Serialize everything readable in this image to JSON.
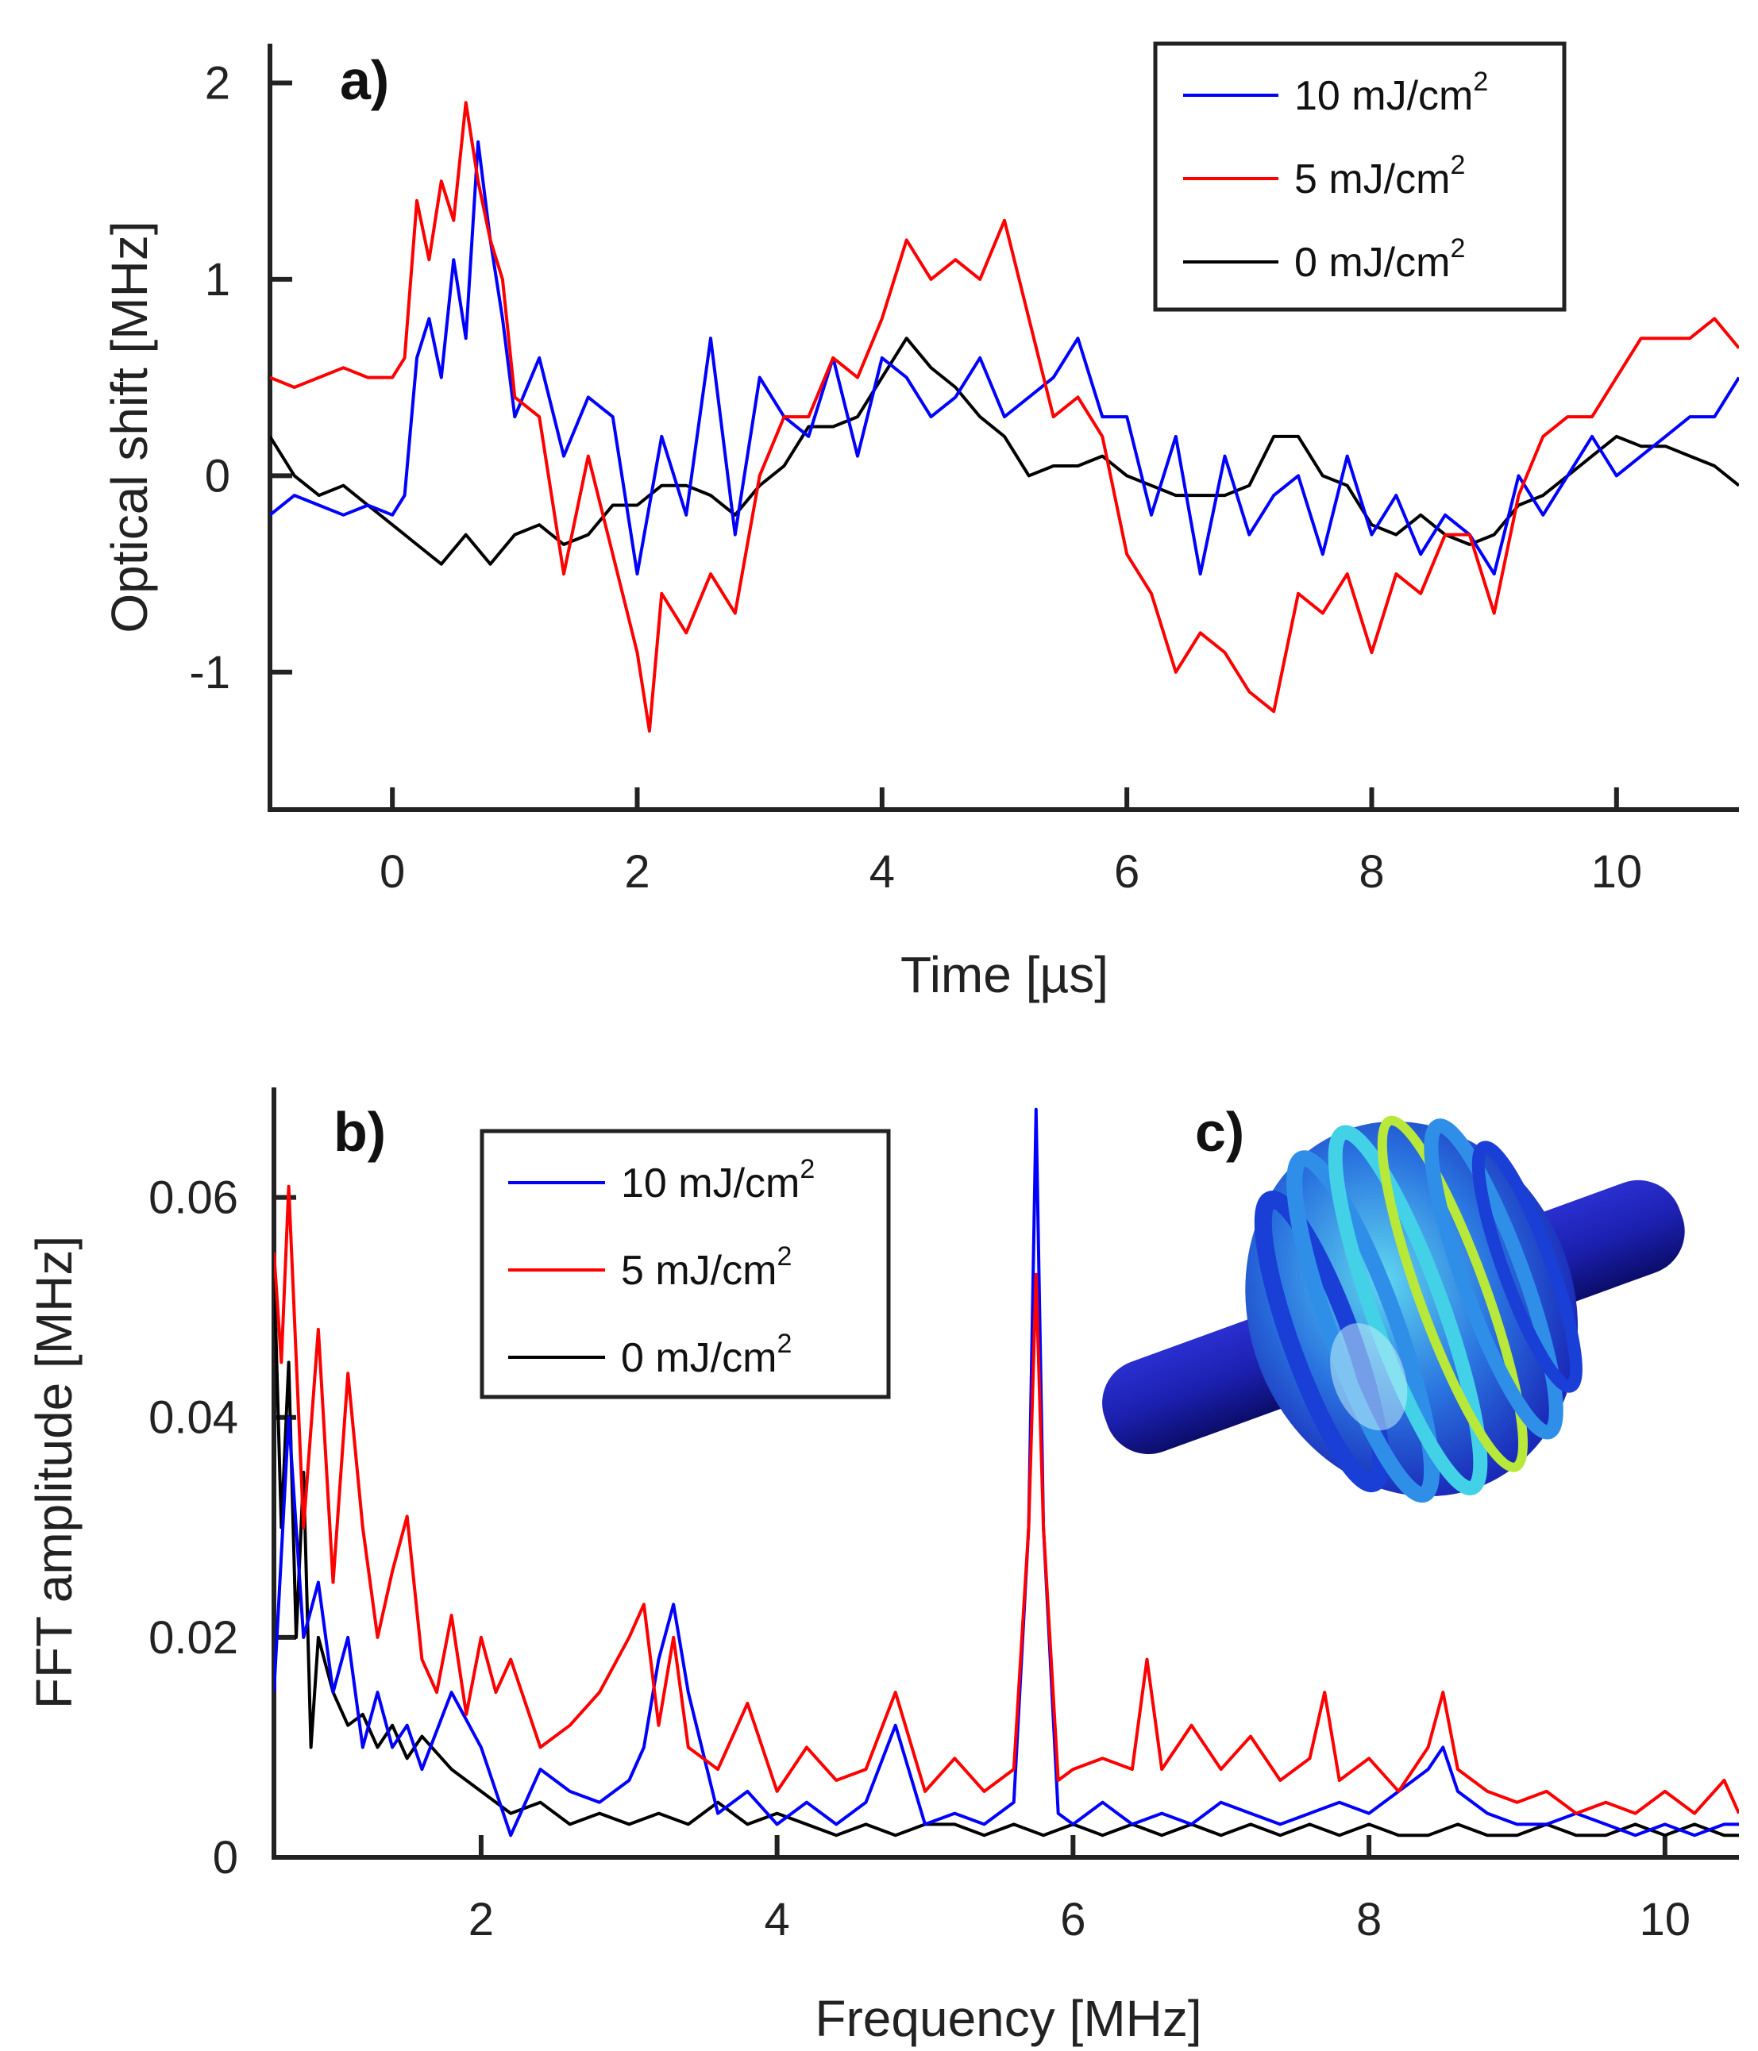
{
  "chart_data": [
    {
      "type": "line",
      "panel_label": "a)",
      "xlabel": "Time [µs]",
      "ylabel": "Optical shift [MHz]",
      "xlim": [
        -1,
        11
      ],
      "ylim": [
        -1.7,
        2.2
      ],
      "xticks": [
        0,
        2,
        4,
        6,
        8,
        10
      ],
      "yticks": [
        -1,
        0,
        1,
        2
      ],
      "xtick_labels": [
        "0",
        "2",
        "4",
        "6",
        "8",
        "10"
      ],
      "ytick_labels": [
        "-1",
        "0",
        "1",
        "2"
      ],
      "legend_position": "top-right",
      "series": [
        {
          "name": "10 mJ/cm",
          "sup": "2",
          "color": "#0000ff",
          "x": [
            -1.0,
            -0.8,
            -0.6,
            -0.4,
            -0.2,
            0.0,
            0.1,
            0.2,
            0.3,
            0.4,
            0.5,
            0.6,
            0.7,
            0.8,
            0.9,
            1.0,
            1.2,
            1.4,
            1.6,
            1.8,
            2.0,
            2.2,
            2.4,
            2.6,
            2.8,
            3.0,
            3.2,
            3.4,
            3.6,
            3.8,
            4.0,
            4.2,
            4.4,
            4.6,
            4.8,
            5.0,
            5.2,
            5.4,
            5.6,
            5.8,
            6.0,
            6.2,
            6.4,
            6.6,
            6.8,
            7.0,
            7.2,
            7.4,
            7.6,
            7.8,
            8.0,
            8.2,
            8.4,
            8.6,
            8.8,
            9.0,
            9.2,
            9.4,
            9.6,
            9.8,
            10.0,
            10.2,
            10.4,
            10.6,
            10.8,
            11.0
          ],
          "y": [
            -0.2,
            -0.1,
            -0.15,
            -0.2,
            -0.15,
            -0.2,
            -0.1,
            0.6,
            0.8,
            0.5,
            1.1,
            0.7,
            1.7,
            1.2,
            0.8,
            0.3,
            0.6,
            0.1,
            0.4,
            0.3,
            -0.5,
            0.2,
            -0.2,
            0.7,
            -0.3,
            0.5,
            0.3,
            0.2,
            0.6,
            0.1,
            0.6,
            0.5,
            0.3,
            0.4,
            0.6,
            0.3,
            0.4,
            0.5,
            0.7,
            0.3,
            0.3,
            -0.2,
            0.2,
            -0.5,
            0.1,
            -0.3,
            -0.1,
            0.0,
            -0.4,
            0.1,
            -0.3,
            -0.1,
            -0.4,
            -0.2,
            -0.3,
            -0.5,
            0.0,
            -0.2,
            0.0,
            0.2,
            0.0,
            0.1,
            0.2,
            0.3,
            0.3,
            0.5
          ]
        },
        {
          "name": "5 mJ/cm",
          "sup": "2",
          "color": "#ff0000",
          "x": [
            -1.0,
            -0.8,
            -0.6,
            -0.4,
            -0.2,
            0.0,
            0.1,
            0.2,
            0.3,
            0.4,
            0.5,
            0.6,
            0.7,
            0.8,
            0.9,
            1.0,
            1.2,
            1.4,
            1.6,
            1.8,
            2.0,
            2.1,
            2.2,
            2.4,
            2.6,
            2.8,
            3.0,
            3.2,
            3.4,
            3.6,
            3.8,
            4.0,
            4.2,
            4.4,
            4.6,
            4.8,
            5.0,
            5.2,
            5.4,
            5.6,
            5.8,
            6.0,
            6.2,
            6.4,
            6.6,
            6.8,
            7.0,
            7.2,
            7.4,
            7.6,
            7.8,
            8.0,
            8.2,
            8.4,
            8.6,
            8.8,
            9.0,
            9.2,
            9.4,
            9.6,
            9.8,
            10.0,
            10.2,
            10.4,
            10.6,
            10.8,
            11.0
          ],
          "y": [
            0.5,
            0.45,
            0.5,
            0.55,
            0.5,
            0.5,
            0.6,
            1.4,
            1.1,
            1.5,
            1.3,
            1.9,
            1.5,
            1.2,
            1.0,
            0.4,
            0.3,
            -0.5,
            0.1,
            -0.4,
            -0.9,
            -1.3,
            -0.6,
            -0.8,
            -0.5,
            -0.7,
            0.0,
            0.3,
            0.3,
            0.6,
            0.5,
            0.8,
            1.2,
            1.0,
            1.1,
            1.0,
            1.3,
            0.8,
            0.3,
            0.4,
            0.2,
            -0.4,
            -0.6,
            -1.0,
            -0.8,
            -0.9,
            -1.1,
            -1.2,
            -0.6,
            -0.7,
            -0.5,
            -0.9,
            -0.5,
            -0.6,
            -0.3,
            -0.3,
            -0.7,
            -0.1,
            0.2,
            0.3,
            0.3,
            0.5,
            0.7,
            0.7,
            0.7,
            0.8,
            0.65
          ]
        },
        {
          "name": "0 mJ/cm",
          "sup": "2",
          "color": "#000000",
          "x": [
            -1.0,
            -0.8,
            -0.6,
            -0.4,
            -0.2,
            0.0,
            0.2,
            0.4,
            0.6,
            0.8,
            1.0,
            1.2,
            1.4,
            1.6,
            1.8,
            2.0,
            2.2,
            2.4,
            2.6,
            2.8,
            3.0,
            3.2,
            3.4,
            3.6,
            3.8,
            4.0,
            4.2,
            4.4,
            4.6,
            4.8,
            5.0,
            5.2,
            5.4,
            5.6,
            5.8,
            6.0,
            6.2,
            6.4,
            6.6,
            6.8,
            7.0,
            7.2,
            7.4,
            7.6,
            7.8,
            8.0,
            8.2,
            8.4,
            8.6,
            8.8,
            9.0,
            9.2,
            9.4,
            9.6,
            9.8,
            10.0,
            10.2,
            10.4,
            10.6,
            10.8,
            11.0
          ],
          "y": [
            0.2,
            0.0,
            -0.1,
            -0.05,
            -0.15,
            -0.25,
            -0.35,
            -0.45,
            -0.3,
            -0.45,
            -0.3,
            -0.25,
            -0.35,
            -0.3,
            -0.15,
            -0.15,
            -0.05,
            -0.05,
            -0.1,
            -0.2,
            -0.05,
            0.05,
            0.25,
            0.25,
            0.3,
            0.5,
            0.7,
            0.55,
            0.45,
            0.3,
            0.2,
            0.0,
            0.05,
            0.05,
            0.1,
            0.0,
            -0.05,
            -0.1,
            -0.1,
            -0.1,
            -0.05,
            0.2,
            0.2,
            0.0,
            -0.05,
            -0.25,
            -0.3,
            -0.2,
            -0.3,
            -0.35,
            -0.3,
            -0.15,
            -0.1,
            0.0,
            0.1,
            0.2,
            0.15,
            0.15,
            0.1,
            0.05,
            -0.05
          ]
        }
      ]
    },
    {
      "type": "line",
      "panel_label": "b)",
      "xlabel": "Frequency [MHz]",
      "ylabel": "FFT amplitude [MHz]",
      "xlim": [
        0.6,
        10.5
      ],
      "ylim": [
        0,
        0.07
      ],
      "xticks": [
        2,
        4,
        6,
        8,
        10
      ],
      "yticks": [
        0,
        0.02,
        0.04,
        0.06
      ],
      "xtick_labels": [
        "2",
        "4",
        "6",
        "8",
        "10"
      ],
      "ytick_labels": [
        "0",
        "0.02",
        "0.04",
        "0.06"
      ],
      "legend_position": "top-center",
      "series": [
        {
          "name": "10 mJ/cm",
          "sup": "2",
          "color": "#0000ff",
          "x": [
            0.6,
            0.7,
            0.8,
            0.9,
            1.0,
            1.1,
            1.2,
            1.3,
            1.4,
            1.5,
            1.6,
            1.8,
            2.0,
            2.2,
            2.4,
            2.6,
            2.8,
            3.0,
            3.1,
            3.2,
            3.3,
            3.4,
            3.6,
            3.8,
            4.0,
            4.2,
            4.4,
            4.6,
            4.8,
            5.0,
            5.2,
            5.4,
            5.6,
            5.7,
            5.75,
            5.8,
            5.9,
            6.0,
            6.2,
            6.4,
            6.6,
            6.8,
            7.0,
            7.2,
            7.4,
            7.6,
            7.8,
            8.0,
            8.2,
            8.4,
            8.5,
            8.6,
            8.8,
            9.0,
            9.2,
            9.4,
            9.6,
            9.8,
            10.0,
            10.2,
            10.4,
            10.5
          ],
          "y": [
            0.015,
            0.04,
            0.02,
            0.025,
            0.015,
            0.02,
            0.01,
            0.015,
            0.01,
            0.012,
            0.008,
            0.015,
            0.01,
            0.002,
            0.008,
            0.006,
            0.005,
            0.007,
            0.01,
            0.018,
            0.023,
            0.015,
            0.004,
            0.006,
            0.003,
            0.005,
            0.003,
            0.005,
            0.012,
            0.003,
            0.004,
            0.003,
            0.005,
            0.03,
            0.068,
            0.03,
            0.004,
            0.003,
            0.005,
            0.003,
            0.004,
            0.003,
            0.005,
            0.004,
            0.003,
            0.004,
            0.005,
            0.004,
            0.006,
            0.008,
            0.01,
            0.006,
            0.004,
            0.003,
            0.003,
            0.004,
            0.003,
            0.002,
            0.003,
            0.002,
            0.003,
            0.003
          ]
        },
        {
          "name": "5 mJ/cm",
          "sup": "2",
          "color": "#ff0000",
          "x": [
            0.6,
            0.65,
            0.7,
            0.8,
            0.9,
            1.0,
            1.1,
            1.2,
            1.3,
            1.4,
            1.5,
            1.6,
            1.7,
            1.8,
            1.9,
            2.0,
            2.1,
            2.2,
            2.4,
            2.6,
            2.8,
            3.0,
            3.1,
            3.2,
            3.3,
            3.4,
            3.6,
            3.8,
            4.0,
            4.2,
            4.4,
            4.6,
            4.8,
            5.0,
            5.2,
            5.4,
            5.6,
            5.7,
            5.75,
            5.8,
            5.9,
            6.0,
            6.2,
            6.4,
            6.5,
            6.6,
            6.8,
            7.0,
            7.2,
            7.4,
            7.6,
            7.7,
            7.8,
            8.0,
            8.2,
            8.4,
            8.5,
            8.6,
            8.8,
            9.0,
            9.2,
            9.4,
            9.6,
            9.8,
            10.0,
            10.2,
            10.4,
            10.5
          ],
          "y": [
            0.055,
            0.045,
            0.061,
            0.03,
            0.048,
            0.025,
            0.044,
            0.03,
            0.02,
            0.026,
            0.031,
            0.018,
            0.015,
            0.022,
            0.013,
            0.02,
            0.015,
            0.018,
            0.01,
            0.012,
            0.015,
            0.02,
            0.023,
            0.012,
            0.02,
            0.01,
            0.008,
            0.014,
            0.006,
            0.01,
            0.007,
            0.008,
            0.015,
            0.006,
            0.009,
            0.006,
            0.008,
            0.03,
            0.053,
            0.03,
            0.007,
            0.008,
            0.009,
            0.008,
            0.018,
            0.008,
            0.012,
            0.008,
            0.011,
            0.007,
            0.009,
            0.015,
            0.007,
            0.009,
            0.006,
            0.01,
            0.015,
            0.008,
            0.006,
            0.005,
            0.006,
            0.004,
            0.005,
            0.004,
            0.006,
            0.004,
            0.007,
            0.004
          ]
        },
        {
          "name": "0 mJ/cm",
          "sup": "2",
          "color": "#000000",
          "x": [
            0.6,
            0.65,
            0.7,
            0.75,
            0.8,
            0.85,
            0.9,
            1.0,
            1.1,
            1.2,
            1.3,
            1.4,
            1.5,
            1.6,
            1.8,
            2.0,
            2.2,
            2.4,
            2.6,
            2.8,
            3.0,
            3.2,
            3.4,
            3.6,
            3.8,
            4.0,
            4.2,
            4.4,
            4.6,
            4.8,
            5.0,
            5.2,
            5.4,
            5.6,
            5.8,
            6.0,
            6.2,
            6.4,
            6.6,
            6.8,
            7.0,
            7.2,
            7.4,
            7.6,
            7.8,
            8.0,
            8.2,
            8.4,
            8.6,
            8.8,
            9.0,
            9.2,
            9.4,
            9.6,
            9.8,
            10.0,
            10.2,
            10.4,
            10.5
          ],
          "y": [
            0.054,
            0.03,
            0.045,
            0.02,
            0.035,
            0.01,
            0.02,
            0.015,
            0.012,
            0.013,
            0.01,
            0.012,
            0.009,
            0.011,
            0.008,
            0.006,
            0.004,
            0.005,
            0.003,
            0.004,
            0.003,
            0.004,
            0.003,
            0.005,
            0.003,
            0.004,
            0.003,
            0.002,
            0.003,
            0.002,
            0.003,
            0.003,
            0.002,
            0.003,
            0.002,
            0.003,
            0.002,
            0.003,
            0.002,
            0.003,
            0.002,
            0.003,
            0.002,
            0.003,
            0.002,
            0.003,
            0.002,
            0.002,
            0.003,
            0.002,
            0.002,
            0.003,
            0.002,
            0.002,
            0.003,
            0.002,
            0.003,
            0.002,
            0.002
          ]
        }
      ]
    }
  ],
  "inset": {
    "panel_label": "c)",
    "colors": {
      "rod": "#1f22b8",
      "rod_dark": "#0d0f70",
      "ring_outer": "#1a3fd6",
      "ring_mid": "#2f8fe8",
      "ring_light": "#42d1e6",
      "ring_hot": "#b8e83a"
    }
  }
}
